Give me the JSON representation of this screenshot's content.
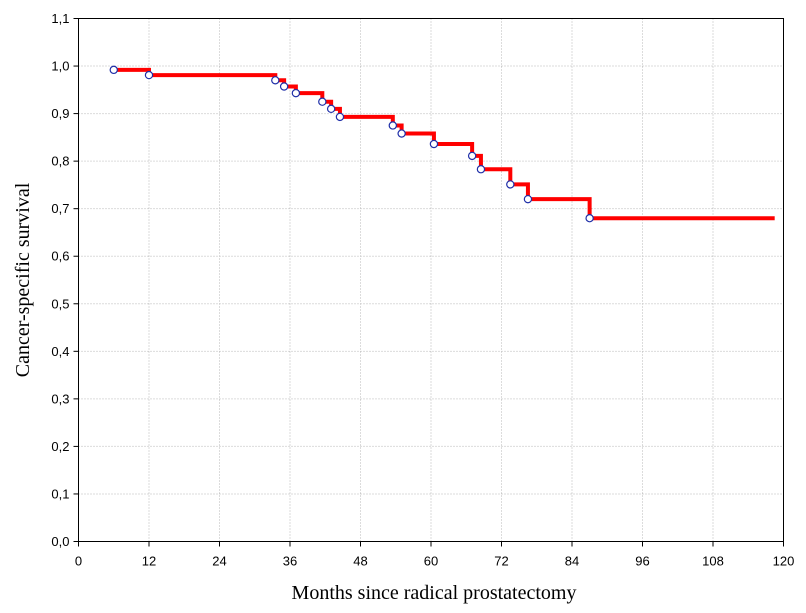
{
  "chart_data": {
    "type": "line",
    "subtype": "kaplan-meier-step",
    "title": "",
    "xlabel": "Months since radical prostatectomy",
    "ylabel": "Cancer-specific survival",
    "xlim": [
      0,
      120
    ],
    "ylim": [
      0.0,
      1.1
    ],
    "x_ticks": [
      0,
      12,
      24,
      36,
      48,
      60,
      72,
      84,
      96,
      108,
      120
    ],
    "x_tick_labels": [
      "0",
      "12",
      "24",
      "36",
      "48",
      "60",
      "72",
      "84",
      "96",
      "108",
      "120"
    ],
    "y_ticks": [
      0.0,
      0.1,
      0.2,
      0.3,
      0.4,
      0.5,
      0.6,
      0.7,
      0.8,
      0.9,
      1.0,
      1.1
    ],
    "y_tick_labels": [
      "0,0",
      "0,1",
      "0,2",
      "0,3",
      "0,4",
      "0,5",
      "0,6",
      "0,7",
      "0,8",
      "0,9",
      "1,0",
      "1,1"
    ],
    "grid": true,
    "legend": "none",
    "colors": {
      "line": "#ff0000",
      "marker_stroke": "#1f2fa8",
      "grid": "#b8b8b8",
      "axis": "#000000"
    },
    "series": [
      {
        "steps": [
          {
            "x": 6,
            "y": 0.992
          },
          {
            "x": 12,
            "y": 0.981
          },
          {
            "x": 33.5,
            "y": 0.97
          },
          {
            "x": 35,
            "y": 0.957
          },
          {
            "x": 37,
            "y": 0.943
          },
          {
            "x": 41.5,
            "y": 0.925
          },
          {
            "x": 43,
            "y": 0.91
          },
          {
            "x": 44.5,
            "y": 0.893
          },
          {
            "x": 53.5,
            "y": 0.875
          },
          {
            "x": 55,
            "y": 0.858
          },
          {
            "x": 60.5,
            "y": 0.836
          },
          {
            "x": 67,
            "y": 0.811
          },
          {
            "x": 68.5,
            "y": 0.783
          },
          {
            "x": 73.5,
            "y": 0.751
          },
          {
            "x": 76.5,
            "y": 0.72
          },
          {
            "x": 87,
            "y": 0.68
          }
        ],
        "end_x": 118.5,
        "markers": [
          {
            "x": 6,
            "y": 0.992
          },
          {
            "x": 12,
            "y": 0.981
          },
          {
            "x": 33.5,
            "y": 0.97
          },
          {
            "x": 35,
            "y": 0.957
          },
          {
            "x": 37,
            "y": 0.943
          },
          {
            "x": 41.5,
            "y": 0.925
          },
          {
            "x": 43,
            "y": 0.91
          },
          {
            "x": 44.5,
            "y": 0.893
          },
          {
            "x": 53.5,
            "y": 0.875
          },
          {
            "x": 55,
            "y": 0.858
          },
          {
            "x": 60.5,
            "y": 0.836
          },
          {
            "x": 67,
            "y": 0.811
          },
          {
            "x": 68.5,
            "y": 0.783
          },
          {
            "x": 73.5,
            "y": 0.751
          },
          {
            "x": 76.5,
            "y": 0.72
          },
          {
            "x": 87,
            "y": 0.68
          }
        ]
      }
    ]
  }
}
